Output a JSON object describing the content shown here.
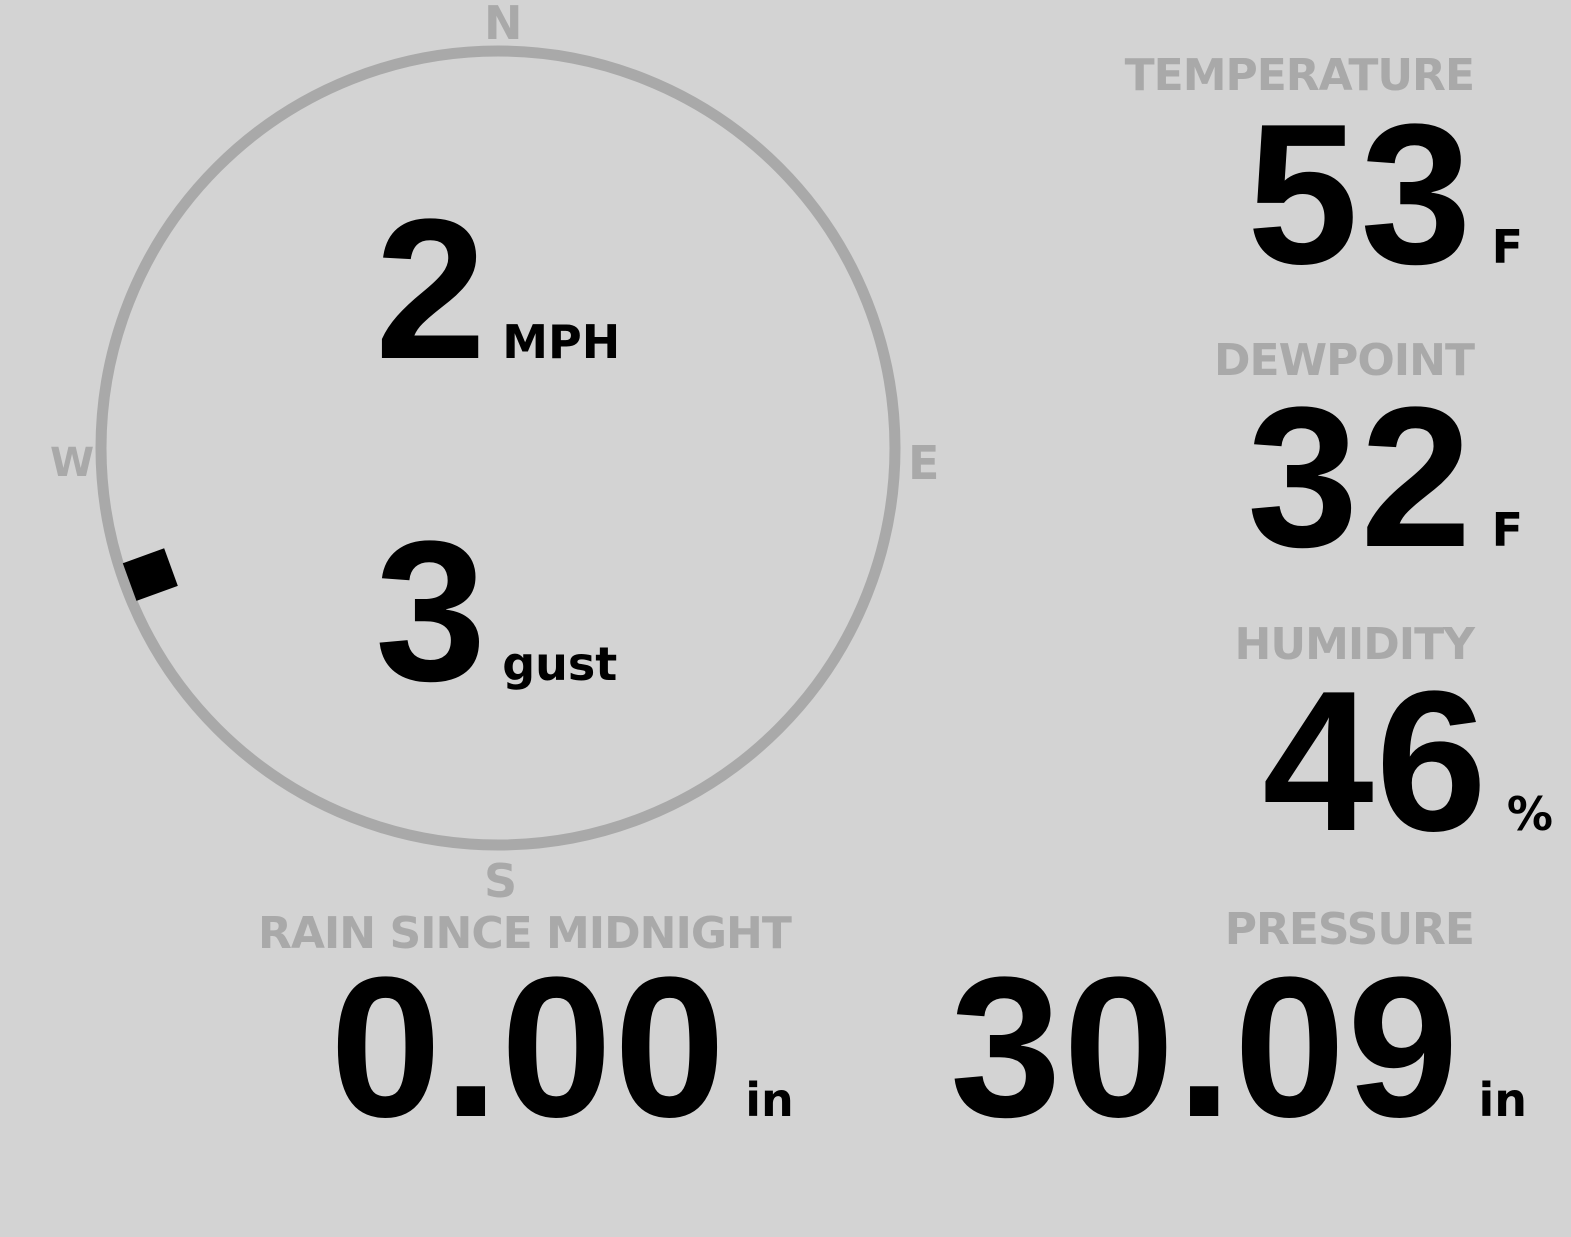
{
  "wind": {
    "speed": "2",
    "speed_unit": "MPH",
    "gust": "3",
    "gust_unit": "gust",
    "direction_degrees": 250,
    "compass": {
      "n": "N",
      "e": "E",
      "s": "S",
      "w": "W"
    }
  },
  "temperature": {
    "label": "TEMPERATURE",
    "value": "53",
    "unit": "F"
  },
  "dewpoint": {
    "label": "DEWPOINT",
    "value": "32",
    "unit": "F"
  },
  "humidity": {
    "label": "HUMIDITY",
    "value": "46",
    "unit": "%"
  },
  "rain": {
    "label": "RAIN SINCE MIDNIGHT",
    "value": "0.00",
    "unit": "in"
  },
  "pressure": {
    "label": "PRESSURE",
    "value": "30.09",
    "unit": "in"
  },
  "colors": {
    "background": "#d3d3d3",
    "ring": "#a9a9a9",
    "value": "#000000"
  }
}
